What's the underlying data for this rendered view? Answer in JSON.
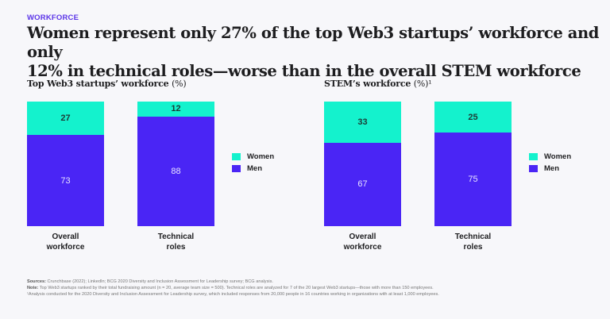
{
  "eyebrow": "WORKFORCE",
  "title_line1": "Women represent only 27% of the top Web3 startups’ workforce and only",
  "title_line2": "12% in technical roles—worse than in the overall STEM workforce",
  "colors": {
    "women": "#14f2cd",
    "men": "#4a25f5"
  },
  "chart_data": [
    {
      "type": "bar",
      "stacked": true,
      "title": "Top Web3 startups’ workforce",
      "unit": "(%)",
      "categories": [
        "Overall workforce",
        "Technical roles"
      ],
      "category_lines": [
        [
          "Overall",
          "workforce"
        ],
        [
          "Technical",
          "roles"
        ]
      ],
      "series": [
        {
          "name": "Women",
          "values": [
            27,
            12
          ]
        },
        {
          "name": "Men",
          "values": [
            73,
            88
          ]
        }
      ],
      "legend": "right"
    },
    {
      "type": "bar",
      "stacked": true,
      "title": "STEM’s workforce",
      "unit": "(%)¹",
      "categories": [
        "Overall workforce",
        "Technical roles"
      ],
      "category_lines": [
        [
          "Overall",
          "workforce"
        ],
        [
          "Technical",
          "roles"
        ]
      ],
      "series": [
        {
          "name": "Women",
          "values": [
            33,
            25
          ]
        },
        {
          "name": "Men",
          "values": [
            67,
            75
          ]
        }
      ],
      "legend": "right"
    }
  ],
  "notes": {
    "sources_label": "Sources:",
    "sources": " Crunchbase (2022); LinkedIn; BCG 2020 Diversity and Inclusion Assessment for Leadership survey; BCG analysis.",
    "note_label": "Note:",
    "note": " Top Web3 startups ranked by their total fundraising amount (n = 20, average team size = 500). Technical roles are analyzed for 7 of the 20 largest Web3 startups—those with more than 150 employees.",
    "footnote": "¹Analysis conducted for the 2020 Diversity and Inclusion Assessment for Leadership survey, which included responses from 20,000 people in 16 countries working in organizations with at least 1,000 employees."
  }
}
